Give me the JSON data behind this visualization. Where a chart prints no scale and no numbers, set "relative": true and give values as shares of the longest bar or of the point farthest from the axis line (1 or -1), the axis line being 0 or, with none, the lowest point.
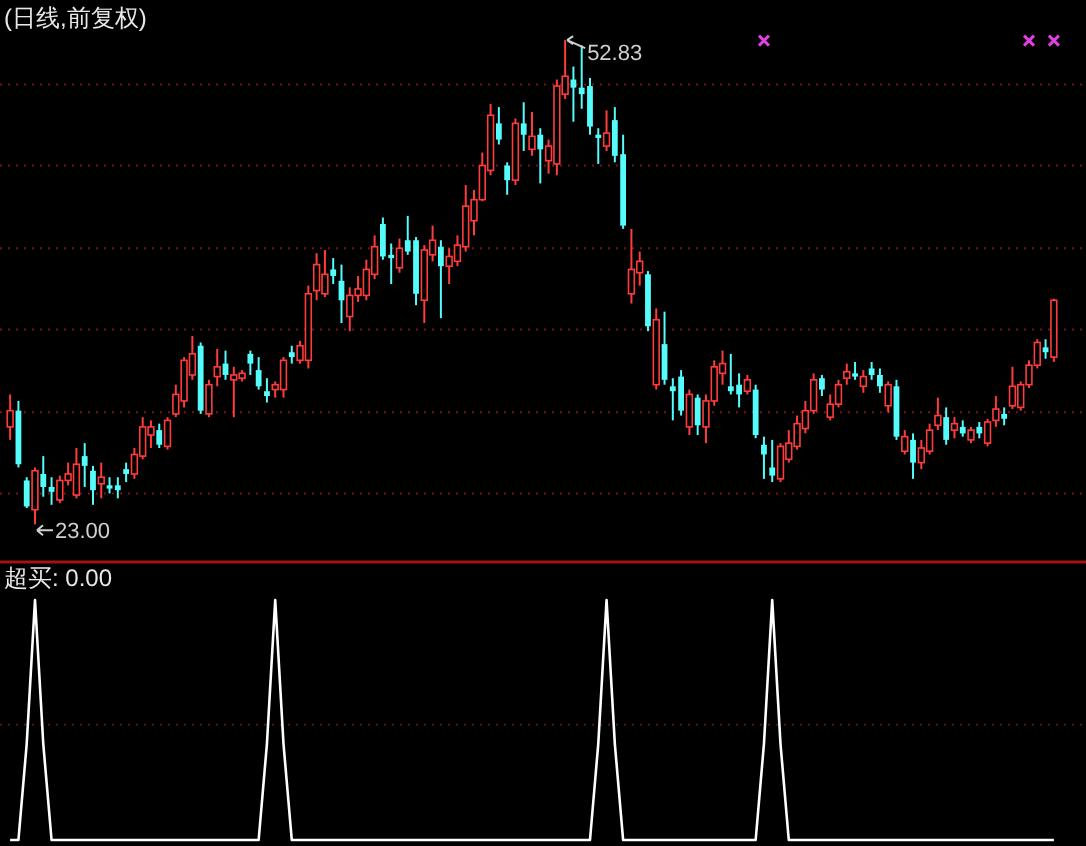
{
  "chart_data": [
    {
      "type": "candlestick",
      "title": "(日线,前复权)",
      "grid": "y",
      "ylim": [
        20.8,
        55.3
      ],
      "yticks": [
        {
          "value": 24.9,
          "label": null
        },
        {
          "value": 29.9,
          "label": null
        },
        {
          "value": 35.0,
          "label": null
        },
        {
          "value": 40.0,
          "label": null
        },
        {
          "value": 45.1,
          "label": null
        },
        {
          "value": 50.1,
          "label": null
        }
      ],
      "categories": [
        null,
        null,
        null,
        null,
        null,
        null,
        null,
        null,
        null,
        null,
        null,
        null,
        null,
        null,
        null,
        null,
        null,
        null,
        null,
        null,
        null,
        null,
        null,
        null,
        null,
        null,
        null,
        null,
        null,
        null,
        null,
        null,
        null,
        null,
        null,
        null,
        null,
        null,
        null,
        null,
        null,
        null,
        null,
        null,
        null,
        null,
        null,
        null,
        null,
        null,
        null,
        null,
        null,
        null,
        null,
        null,
        null,
        null,
        null,
        null,
        null,
        null,
        null,
        null,
        null,
        null,
        null,
        null,
        null,
        null,
        null,
        null,
        null,
        null,
        null,
        null,
        null,
        null,
        null,
        null,
        null,
        null,
        null,
        null,
        null,
        null,
        null,
        null,
        null,
        null,
        null,
        null,
        null,
        null,
        null,
        null,
        null,
        null,
        null,
        null,
        null,
        null,
        null,
        null,
        null,
        null,
        null,
        null,
        null,
        null,
        null,
        null,
        null,
        null,
        null,
        null,
        null,
        null,
        null,
        null,
        null,
        null,
        null,
        null,
        null,
        null,
        null
      ],
      "ohlc": [
        [
          29.0,
          31.0,
          28.2,
          30.0
        ],
        [
          30.0,
          30.6,
          26.5,
          26.7
        ],
        [
          25.7,
          25.9,
          24.0,
          24.1
        ],
        [
          23.9,
          26.5,
          23.0,
          26.3
        ],
        [
          26.1,
          27.2,
          24.7,
          25.3
        ],
        [
          25.3,
          25.9,
          24.2,
          25.0
        ],
        [
          24.5,
          26.0,
          24.3,
          25.7
        ],
        [
          25.7,
          26.8,
          25.4,
          26.1
        ],
        [
          24.8,
          27.7,
          24.6,
          26.7
        ],
        [
          27.2,
          28.0,
          25.3,
          26.6
        ],
        [
          26.3,
          26.6,
          24.2,
          25.1
        ],
        [
          25.5,
          26.8,
          24.6,
          25.9
        ],
        [
          25.4,
          25.9,
          24.9,
          25.2
        ],
        [
          25.4,
          25.9,
          24.6,
          25.1
        ],
        [
          26.4,
          26.8,
          25.6,
          26.1
        ],
        [
          26.1,
          27.7,
          25.8,
          27.3
        ],
        [
          27.2,
          29.6,
          27.0,
          29.0
        ],
        [
          28.5,
          29.4,
          27.7,
          29.0
        ],
        [
          28.8,
          29.2,
          27.7,
          27.9
        ],
        [
          27.8,
          29.6,
          27.6,
          29.4
        ],
        [
          29.8,
          31.6,
          29.6,
          31.0
        ],
        [
          30.6,
          33.3,
          30.2,
          33.1
        ],
        [
          32.2,
          34.6,
          31.9,
          33.5
        ],
        [
          34.0,
          34.2,
          29.8,
          30.0
        ],
        [
          29.8,
          31.9,
          29.6,
          31.6
        ],
        [
          32.1,
          33.8,
          31.5,
          32.7
        ],
        [
          32.9,
          33.7,
          31.9,
          32.2
        ],
        [
          31.9,
          32.7,
          29.6,
          32.2
        ],
        [
          32.0,
          32.5,
          31.8,
          32.3
        ],
        [
          33.5,
          33.7,
          32.2,
          32.9
        ],
        [
          32.5,
          33.3,
          31.3,
          31.5
        ],
        [
          31.2,
          32.0,
          30.5,
          30.9
        ],
        [
          31.3,
          31.8,
          30.8,
          31.6
        ],
        [
          31.3,
          33.3,
          30.8,
          33.1
        ],
        [
          33.6,
          34.0,
          32.9,
          33.3
        ],
        [
          33.1,
          34.3,
          32.9,
          34.0
        ],
        [
          33.1,
          37.7,
          32.6,
          37.2
        ],
        [
          37.4,
          39.7,
          36.8,
          39.0
        ],
        [
          37.2,
          39.9,
          37.0,
          38.4
        ],
        [
          38.7,
          39.4,
          37.8,
          38.3
        ],
        [
          38.0,
          39.0,
          35.4,
          36.8
        ],
        [
          35.8,
          37.6,
          34.9,
          37.1
        ],
        [
          37.1,
          38.3,
          36.7,
          37.5
        ],
        [
          37.1,
          39.3,
          36.8,
          38.7
        ],
        [
          38.4,
          40.8,
          38.1,
          40.1
        ],
        [
          41.5,
          41.9,
          39.3,
          39.5
        ],
        [
          39.6,
          40.3,
          37.8,
          39.4
        ],
        [
          38.8,
          40.6,
          38.5,
          40.0
        ],
        [
          40.5,
          42.0,
          39.6,
          39.8
        ],
        [
          40.5,
          40.7,
          36.5,
          37.2
        ],
        [
          36.8,
          40.2,
          35.4,
          39.9
        ],
        [
          39.6,
          41.4,
          39.2,
          40.5
        ],
        [
          40.1,
          40.5,
          35.7,
          38.9
        ],
        [
          38.9,
          40.0,
          37.8,
          39.5
        ],
        [
          39.2,
          40.8,
          38.9,
          40.2
        ],
        [
          40.1,
          43.9,
          39.8,
          42.6
        ],
        [
          41.7,
          43.6,
          40.8,
          43.0
        ],
        [
          43.0,
          45.9,
          42.9,
          45.1
        ],
        [
          44.8,
          48.9,
          44.5,
          48.2
        ],
        [
          47.7,
          48.7,
          46.4,
          46.7
        ],
        [
          45.1,
          45.3,
          43.3,
          44.2
        ],
        [
          44.2,
          48.0,
          43.9,
          47.7
        ],
        [
          47.7,
          49.0,
          46.0,
          47.0
        ],
        [
          46.1,
          48.4,
          45.7,
          46.9
        ],
        [
          47.0,
          47.4,
          44.0,
          46.1
        ],
        [
          45.4,
          46.7,
          44.6,
          46.3
        ],
        [
          45.2,
          50.4,
          44.5,
          50.0
        ],
        [
          49.5,
          52.83,
          49.2,
          50.6
        ],
        [
          50.4,
          51.2,
          47.8,
          49.9
        ],
        [
          49.9,
          52.5,
          48.6,
          49.5
        ],
        [
          50.0,
          50.5,
          47.0,
          47.5
        ],
        [
          47.0,
          47.4,
          45.2,
          46.8
        ],
        [
          46.3,
          48.5,
          46.0,
          47.1
        ],
        [
          47.9,
          48.7,
          45.3,
          45.7
        ],
        [
          45.8,
          47.0,
          41.2,
          41.4
        ],
        [
          37.2,
          41.2,
          36.6,
          38.7
        ],
        [
          38.5,
          39.8,
          37.7,
          39.2
        ],
        [
          38.4,
          38.6,
          34.9,
          35.2
        ],
        [
          31.6,
          36.3,
          31.3,
          35.6
        ],
        [
          34.1,
          36.1,
          31.6,
          31.9
        ],
        [
          31.5,
          32.0,
          29.4,
          31.2
        ],
        [
          32.1,
          32.5,
          29.7,
          30.0
        ],
        [
          29.0,
          31.3,
          28.5,
          31.0
        ],
        [
          30.8,
          31.0,
          28.5,
          29.1
        ],
        [
          29.0,
          31.0,
          28.0,
          30.6
        ],
        [
          30.6,
          33.1,
          30.3,
          32.7
        ],
        [
          32.3,
          33.7,
          31.6,
          32.9
        ],
        [
          31.5,
          33.5,
          31.0,
          31.2
        ],
        [
          31.6,
          32.3,
          30.2,
          31.0
        ],
        [
          31.2,
          32.2,
          31.0,
          31.9
        ],
        [
          31.3,
          31.6,
          28.3,
          28.5
        ],
        [
          27.9,
          28.4,
          25.8,
          27.3
        ],
        [
          26.5,
          28.2,
          25.6,
          26.0
        ],
        [
          25.8,
          28.0,
          25.6,
          27.8
        ],
        [
          27.0,
          28.8,
          26.8,
          28.0
        ],
        [
          27.8,
          29.7,
          27.6,
          29.2
        ],
        [
          28.9,
          30.6,
          28.6,
          30.0
        ],
        [
          30.0,
          32.3,
          29.8,
          31.9
        ],
        [
          32.0,
          32.2,
          30.9,
          31.3
        ],
        [
          29.6,
          31.0,
          29.4,
          30.4
        ],
        [
          30.4,
          31.9,
          30.2,
          31.6
        ],
        [
          32.0,
          32.9,
          31.6,
          32.4
        ],
        [
          32.3,
          33.0,
          31.9,
          32.1
        ],
        [
          31.5,
          32.5,
          31.1,
          32.1
        ],
        [
          32.6,
          33.0,
          31.9,
          32.2
        ],
        [
          32.2,
          32.6,
          31.1,
          31.5
        ],
        [
          30.3,
          31.8,
          29.9,
          31.6
        ],
        [
          31.5,
          31.9,
          28.2,
          28.4
        ],
        [
          27.5,
          28.8,
          27.3,
          28.4
        ],
        [
          28.2,
          28.6,
          25.8,
          26.8
        ],
        [
          26.8,
          28.2,
          26.4,
          27.7
        ],
        [
          27.5,
          29.2,
          27.3,
          28.8
        ],
        [
          29.1,
          30.8,
          28.8,
          29.7
        ],
        [
          29.6,
          30.2,
          27.9,
          28.2
        ],
        [
          28.8,
          29.6,
          28.3,
          29.2
        ],
        [
          29.0,
          29.4,
          28.4,
          28.6
        ],
        [
          28.2,
          29.0,
          28.0,
          28.8
        ],
        [
          29.0,
          29.3,
          28.3,
          28.6
        ],
        [
          28.0,
          29.5,
          27.8,
          29.3
        ],
        [
          29.4,
          30.9,
          29.0,
          30.1
        ],
        [
          29.8,
          30.2,
          29.1,
          29.5
        ],
        [
          30.3,
          32.7,
          30.1,
          31.5
        ],
        [
          30.2,
          31.8,
          30.0,
          31.6
        ],
        [
          31.6,
          33.1,
          31.4,
          32.8
        ],
        [
          32.8,
          34.4,
          32.6,
          34.2
        ],
        [
          33.9,
          34.4,
          33.2,
          33.6
        ],
        [
          33.3,
          36.9,
          33.0,
          36.8
        ]
      ],
      "colors": [
        "#ff3c3c",
        "#54fcfc",
        "#54fcfc",
        "#ff3c3c",
        "#54fcfc",
        "#54fcfc",
        "#ff3c3c",
        "#ff3c3c",
        "#ff3c3c",
        "#54fcfc",
        "#54fcfc",
        "#ff3c3c",
        "#54fcfc",
        "#54fcfc",
        "#54fcfc",
        "#ff3c3c",
        "#ff3c3c",
        "#ff3c3c",
        "#54fcfc",
        "#ff3c3c",
        "#ff3c3c",
        "#ff3c3c",
        "#ff3c3c",
        "#54fcfc",
        "#ff3c3c",
        "#ff3c3c",
        "#54fcfc",
        "#ff3c3c",
        "#ff3c3c",
        "#54fcfc",
        "#54fcfc",
        "#54fcfc",
        "#ff3c3c",
        "#ff3c3c",
        "#54fcfc",
        "#ff3c3c",
        "#ff3c3c",
        "#ff3c3c",
        "#ff3c3c",
        "#54fcfc",
        "#54fcfc",
        "#ff3c3c",
        "#ff3c3c",
        "#ff3c3c",
        "#ff3c3c",
        "#54fcfc",
        "#54fcfc",
        "#ff3c3c",
        "#54fcfc",
        "#54fcfc",
        "#ff3c3c",
        "#ff3c3c",
        "#54fcfc",
        "#ff3c3c",
        "#ff3c3c",
        "#ff3c3c",
        "#ff3c3c",
        "#ff3c3c",
        "#ff3c3c",
        "#54fcfc",
        "#54fcfc",
        "#ff3c3c",
        "#54fcfc",
        "#ff3c3c",
        "#54fcfc",
        "#ff3c3c",
        "#ff3c3c",
        "#ff3c3c",
        "#54fcfc",
        "#54fcfc",
        "#54fcfc",
        "#54fcfc",
        "#ff3c3c",
        "#54fcfc",
        "#54fcfc",
        "#ff3c3c",
        "#ff3c3c",
        "#54fcfc",
        "#ff3c3c",
        "#54fcfc",
        "#54fcfc",
        "#54fcfc",
        "#ff3c3c",
        "#54fcfc",
        "#ff3c3c",
        "#ff3c3c",
        "#ff3c3c",
        "#54fcfc",
        "#54fcfc",
        "#ff3c3c",
        "#54fcfc",
        "#54fcfc",
        "#54fcfc",
        "#ff3c3c",
        "#ff3c3c",
        "#ff3c3c",
        "#ff3c3c",
        "#ff3c3c",
        "#54fcfc",
        "#ff3c3c",
        "#ff3c3c",
        "#ff3c3c",
        "#54fcfc",
        "#ff3c3c",
        "#54fcfc",
        "#54fcfc",
        "#ff3c3c",
        "#54fcfc",
        "#ff3c3c",
        "#54fcfc",
        "#ff3c3c",
        "#ff3c3c",
        "#ff3c3c",
        "#54fcfc",
        "#ff3c3c",
        "#54fcfc",
        "#ff3c3c",
        "#54fcfc",
        "#ff3c3c",
        "#ff3c3c",
        "#54fcfc",
        "#ff3c3c",
        "#ff3c3c",
        "#ff3c3c",
        "#ff3c3c",
        "#54fcfc",
        "#ff3c3c"
      ],
      "series": [
        {
          "type": "scatter",
          "marker": "cross",
          "color": "#e040e0",
          "values": [
            null,
            null,
            null,
            null,
            null,
            null,
            null,
            null,
            null,
            null,
            null,
            null,
            null,
            null,
            null,
            null,
            null,
            null,
            null,
            null,
            null,
            null,
            null,
            null,
            null,
            null,
            null,
            null,
            null,
            null,
            null,
            null,
            null,
            null,
            null,
            null,
            null,
            null,
            null,
            null,
            null,
            null,
            null,
            null,
            null,
            null,
            null,
            null,
            null,
            null,
            null,
            null,
            null,
            null,
            null,
            null,
            null,
            null,
            null,
            null,
            null,
            null,
            null,
            null,
            null,
            null,
            null,
            null,
            null,
            null,
            null,
            null,
            null,
            null,
            null,
            null,
            null,
            null,
            null,
            null,
            null,
            null,
            null,
            null,
            null,
            null,
            null,
            null,
            null,
            null,
            null,
            52.8,
            null,
            null,
            null,
            null,
            null,
            null,
            null,
            null,
            null,
            null,
            null,
            null,
            null,
            null,
            null,
            null,
            null,
            null,
            null,
            null,
            null,
            null,
            null,
            null,
            null,
            null,
            null,
            null,
            null,
            null,
            null,
            52.8,
            null,
            null,
            52.8
          ]
        }
      ],
      "annotations": [
        "52.83",
        "23.00"
      ]
    },
    {
      "type": "line",
      "title": "超买: 0.00",
      "relative": true,
      "categories": [
        null,
        null,
        null,
        null,
        null,
        null,
        null,
        null,
        null,
        null,
        null,
        null,
        null,
        null,
        null,
        null,
        null,
        null,
        null,
        null,
        null,
        null,
        null,
        null,
        null,
        null,
        null,
        null,
        null,
        null,
        null,
        null,
        null,
        null,
        null,
        null,
        null,
        null,
        null,
        null,
        null,
        null,
        null,
        null,
        null,
        null,
        null,
        null,
        null,
        null,
        null,
        null,
        null,
        null,
        null,
        null,
        null,
        null,
        null,
        null,
        null,
        null,
        null,
        null,
        null,
        null,
        null,
        null,
        null,
        null,
        null,
        null,
        null,
        null,
        null,
        null,
        null,
        null,
        null,
        null,
        null,
        null,
        null,
        null,
        null,
        null,
        null,
        null,
        null,
        null,
        null,
        null,
        null,
        null,
        null,
        null,
        null,
        null,
        null,
        null,
        null,
        null,
        null,
        null,
        null,
        null,
        null,
        null,
        null,
        null,
        null,
        null,
        null,
        null,
        null,
        null,
        null,
        null,
        null,
        null,
        null,
        null,
        null,
        null,
        null,
        null,
        null
      ],
      "ref_lines": [
        {
          "axis": "y",
          "value": 0.48,
          "color": "#5a1414",
          "line_style": "dotted"
        }
      ],
      "series": [
        {
          "color": "#ffffff",
          "values": [
            0,
            0,
            0.4,
            1,
            0.4,
            0,
            0,
            0,
            0,
            0,
            0,
            0,
            0,
            0,
            0,
            0,
            0,
            0,
            0,
            0,
            0,
            0,
            0,
            0,
            0,
            0,
            0,
            0,
            0,
            0,
            0,
            0.4,
            1,
            0.4,
            0,
            0,
            0,
            0,
            0,
            0,
            0,
            0,
            0,
            0,
            0,
            0,
            0,
            0,
            0,
            0,
            0,
            0,
            0,
            0,
            0,
            0,
            0,
            0,
            0,
            0,
            0,
            0,
            0,
            0,
            0,
            0,
            0,
            0,
            0,
            0,
            0,
            0.4,
            1,
            0.4,
            0,
            0,
            0,
            0,
            0,
            0,
            0,
            0,
            0,
            0,
            0,
            0,
            0,
            0,
            0,
            0,
            0,
            0.4,
            1,
            0.4,
            0,
            0,
            0,
            0,
            0,
            0,
            0,
            0,
            0,
            0,
            0,
            0,
            0,
            0,
            0,
            0,
            0,
            0,
            0,
            0,
            0,
            0,
            0,
            0,
            0,
            0,
            0,
            0,
            0,
            0,
            0,
            0,
            0
          ]
        }
      ]
    }
  ]
}
